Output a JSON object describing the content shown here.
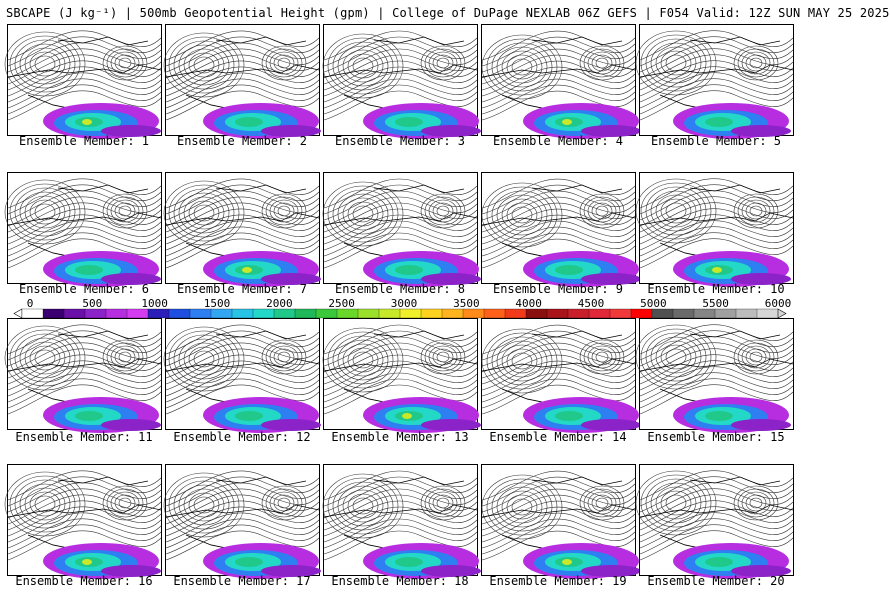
{
  "title": "SBCAPE (J kg⁻¹) | 500mb Geopotential Height (gpm) | College of DuPage NEXLAB 06Z GEFS | F054 Valid: 12Z SUN MAY 25 2025",
  "panels": [
    {
      "label": "Ensemble Member: 1"
    },
    {
      "label": "Ensemble Member: 2"
    },
    {
      "label": "Ensemble Member: 3"
    },
    {
      "label": "Ensemble Member: 4"
    },
    {
      "label": "Ensemble Member: 5"
    },
    {
      "label": "Ensemble Member: 6"
    },
    {
      "label": "Ensemble Member: 7"
    },
    {
      "label": "Ensemble Member: 8"
    },
    {
      "label": "Ensemble Member: 9"
    },
    {
      "label": "Ensemble Member: 10"
    },
    {
      "label": "Ensemble Member: 11"
    },
    {
      "label": "Ensemble Member: 12"
    },
    {
      "label": "Ensemble Member: 13"
    },
    {
      "label": "Ensemble Member: 14"
    },
    {
      "label": "Ensemble Member: 15"
    },
    {
      "label": "Ensemble Member: 16"
    },
    {
      "label": "Ensemble Member: 17"
    },
    {
      "label": "Ensemble Member: 18"
    },
    {
      "label": "Ensemble Member: 19"
    },
    {
      "label": "Ensemble Member: 20"
    }
  ],
  "colorbar": {
    "ticks": [
      "0",
      "500",
      "1000",
      "1500",
      "2000",
      "2500",
      "3000",
      "3500",
      "4000",
      "4500",
      "5000",
      "5500",
      "6000"
    ],
    "colors": [
      "#ffffff",
      "#3a0070",
      "#6a0fa8",
      "#8b23c8",
      "#b62ee0",
      "#d43cf0",
      "#2a1fb8",
      "#1f4fe0",
      "#2d7ff2",
      "#33a6f2",
      "#29c3e6",
      "#24d8c8",
      "#20c88a",
      "#1fb85a",
      "#3bc83a",
      "#6ad82a",
      "#9be02a",
      "#c8e82a",
      "#f0f02a",
      "#ffd21f",
      "#ffb31f",
      "#ff8a1a",
      "#ff611a",
      "#f03a1a",
      "#8a0f0f",
      "#a8141a",
      "#c81f2a",
      "#e0283a",
      "#f03a3a",
      "#ff0000",
      "#505050",
      "#6a6a6a",
      "#858585",
      "#a0a0a0",
      "#bcbcbc",
      "#d6d6d6"
    ]
  }
}
